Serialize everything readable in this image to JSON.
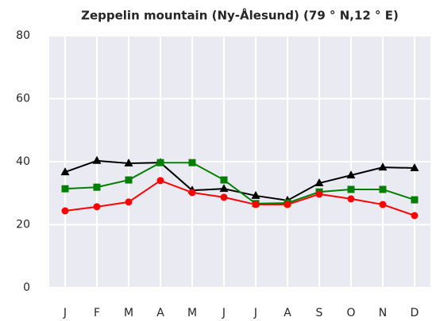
{
  "chart_data": {
    "type": "line",
    "title": "Zeppelin mountain (Ny-Ålesund) (79 ° N,12 ° E)",
    "categories": [
      "J",
      "F",
      "M",
      "A",
      "M",
      "J",
      "J",
      "A",
      "S",
      "O",
      "N",
      "D"
    ],
    "series": [
      {
        "color": "#000000",
        "marker": "triangle",
        "values": [
          36.7,
          40.3,
          39.5,
          39.7,
          30.9,
          31.4,
          29.2,
          27.7,
          33.2,
          35.7,
          38.2,
          38.0
        ]
      },
      {
        "color": "#008000",
        "marker": "square",
        "values": [
          31.4,
          31.9,
          34.2,
          39.7,
          39.7,
          34.2,
          26.7,
          26.9,
          30.4,
          31.2,
          31.2,
          27.9
        ]
      },
      {
        "color": "#ff0000",
        "marker": "circle",
        "values": [
          24.4,
          25.7,
          27.2,
          34.0,
          30.2,
          28.7,
          26.4,
          26.4,
          29.7,
          28.2,
          26.4,
          22.9
        ]
      }
    ],
    "ylim": [
      0,
      80
    ],
    "yticks": [
      0,
      20,
      40,
      60,
      80
    ],
    "grid": true,
    "background": "#eaeaf2"
  }
}
